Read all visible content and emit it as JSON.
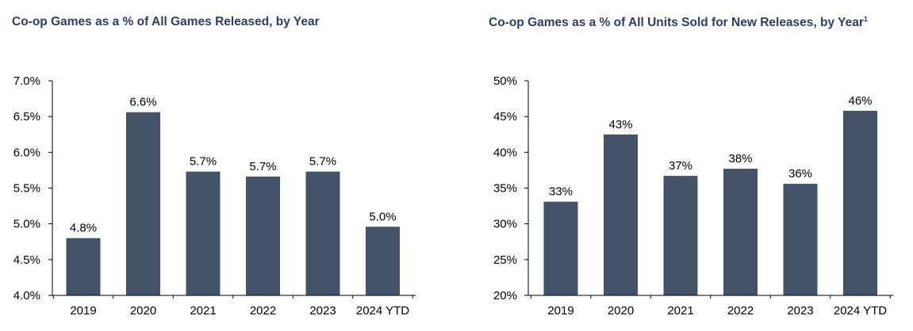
{
  "colors": {
    "bar": "#455368",
    "title": "#2b3f66",
    "axis": "#000000"
  },
  "chart_data": [
    {
      "type": "bar",
      "title": "Co-op Games as a % of All Games Released, by Year",
      "title_suffix": "",
      "xlabel": "",
      "ylabel": "",
      "categories": [
        "2019",
        "2020",
        "2021",
        "2022",
        "2023",
        "2024 YTD"
      ],
      "values": [
        4.8,
        6.56,
        5.73,
        5.66,
        5.73,
        4.96
      ],
      "value_labels": [
        "4.8%",
        "6.6%",
        "5.7%",
        "5.7%",
        "5.7%",
        "5.0%"
      ],
      "ylim": [
        4.0,
        7.0
      ],
      "yticks": [
        4.0,
        4.5,
        5.0,
        5.5,
        6.0,
        6.5,
        7.0
      ],
      "ytick_labels": [
        "4.0%",
        "4.5%",
        "5.0%",
        "5.5%",
        "6.0%",
        "6.5%",
        "7.0%"
      ],
      "grid": false,
      "legend": "none"
    },
    {
      "type": "bar",
      "title": "Co-op Games as a % of All Units Sold for New Releases, by Year",
      "title_suffix": "1",
      "xlabel": "",
      "ylabel": "",
      "categories": [
        "2019",
        "2020",
        "2021",
        "2022",
        "2023",
        "2024 YTD"
      ],
      "values": [
        33.1,
        42.5,
        36.7,
        37.7,
        35.6,
        45.8
      ],
      "value_labels": [
        "33%",
        "43%",
        "37%",
        "38%",
        "36%",
        "46%"
      ],
      "ylim": [
        20,
        50
      ],
      "yticks": [
        20,
        25,
        30,
        35,
        40,
        45,
        50
      ],
      "ytick_labels": [
        "20%",
        "25%",
        "30%",
        "35%",
        "40%",
        "45%",
        "50%"
      ],
      "grid": false,
      "legend": "none"
    }
  ]
}
